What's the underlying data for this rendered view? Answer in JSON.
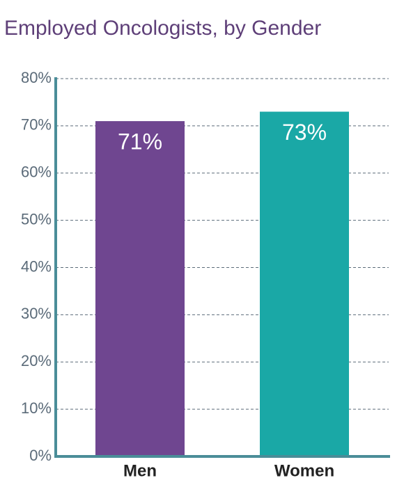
{
  "chart_data": {
    "type": "bar",
    "title": "Employed Oncologists, by Gender",
    "categories": [
      "Men",
      "Women"
    ],
    "values": [
      71,
      73
    ],
    "value_labels": [
      "71%",
      "73%"
    ],
    "colors": [
      "#6f4690",
      "#1aa8a6"
    ],
    "ylim": [
      0,
      80
    ],
    "yticks": [
      {
        "value": 0,
        "label": "0%"
      },
      {
        "value": 10,
        "label": "10%"
      },
      {
        "value": 20,
        "label": "20%"
      },
      {
        "value": 30,
        "label": "30%"
      },
      {
        "value": 40,
        "label": "40%"
      },
      {
        "value": 50,
        "label": "50%"
      },
      {
        "value": 60,
        "label": "60%"
      },
      {
        "value": 70,
        "label": "70%"
      },
      {
        "value": 80,
        "label": "80%"
      }
    ],
    "grid": true
  }
}
